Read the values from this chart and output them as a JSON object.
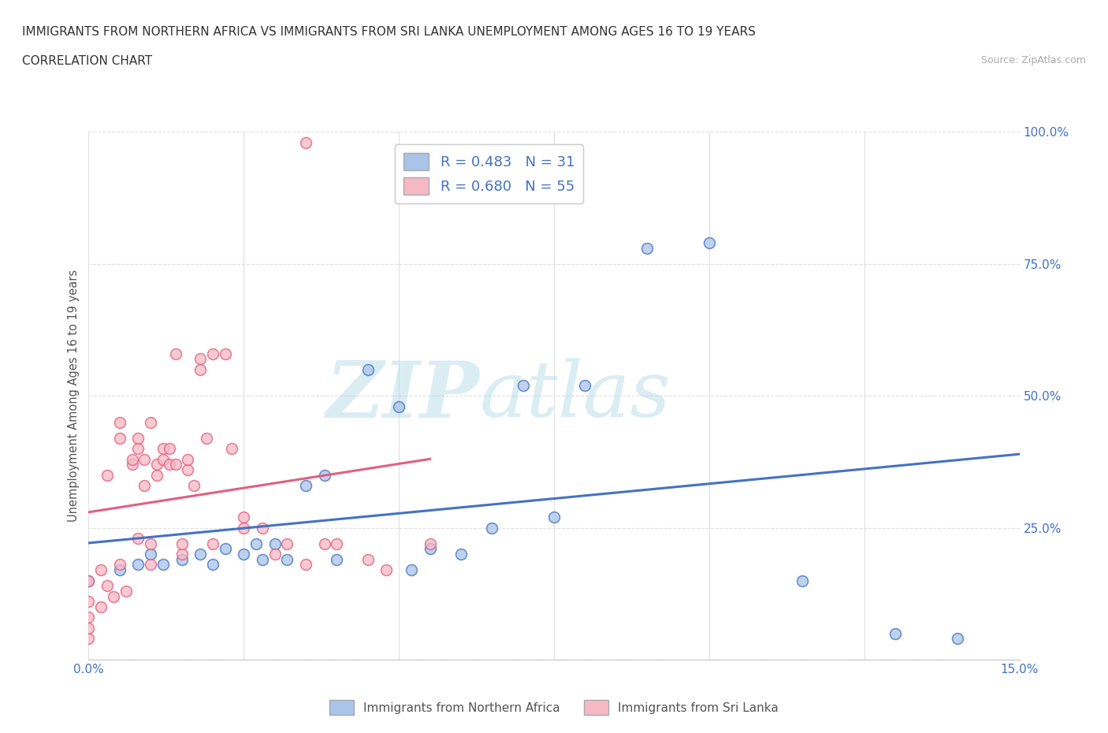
{
  "title_line1": "IMMIGRANTS FROM NORTHERN AFRICA VS IMMIGRANTS FROM SRI LANKA UNEMPLOYMENT AMONG AGES 16 TO 19 YEARS",
  "title_line2": "CORRELATION CHART",
  "source": "Source: ZipAtlas.com",
  "ylabel_label": "Unemployment Among Ages 16 to 19 years",
  "x_min": 0.0,
  "x_max": 0.15,
  "y_min": 0.0,
  "y_max": 1.0,
  "x_ticks": [
    0.0,
    0.025,
    0.05,
    0.075,
    0.1,
    0.125,
    0.15
  ],
  "y_ticks": [
    0.0,
    0.25,
    0.5,
    0.75,
    1.0
  ],
  "y_tick_labels": [
    "",
    "25.0%",
    "50.0%",
    "75.0%",
    "100.0%"
  ],
  "r_blue": 0.483,
  "n_blue": 31,
  "r_pink": 0.68,
  "n_pink": 55,
  "color_blue": "#a8c4e8",
  "color_pink": "#f5b8c4",
  "line_blue": "#4472c4",
  "line_pink": "#e06080",
  "blue_x": [
    0.0,
    0.005,
    0.008,
    0.01,
    0.012,
    0.015,
    0.018,
    0.02,
    0.022,
    0.025,
    0.027,
    0.028,
    0.03,
    0.032,
    0.035,
    0.038,
    0.04,
    0.045,
    0.05,
    0.052,
    0.055,
    0.06,
    0.065,
    0.07,
    0.075,
    0.08,
    0.09,
    0.1,
    0.115,
    0.13,
    0.14
  ],
  "blue_y": [
    0.15,
    0.17,
    0.18,
    0.2,
    0.18,
    0.19,
    0.2,
    0.18,
    0.21,
    0.2,
    0.22,
    0.19,
    0.22,
    0.19,
    0.33,
    0.35,
    0.19,
    0.55,
    0.48,
    0.17,
    0.21,
    0.2,
    0.25,
    0.52,
    0.27,
    0.52,
    0.78,
    0.79,
    0.15,
    0.05,
    0.04
  ],
  "pink_x": [
    0.0,
    0.0,
    0.0,
    0.0,
    0.0,
    0.002,
    0.002,
    0.003,
    0.003,
    0.004,
    0.005,
    0.005,
    0.005,
    0.006,
    0.007,
    0.007,
    0.008,
    0.008,
    0.008,
    0.009,
    0.009,
    0.01,
    0.01,
    0.01,
    0.011,
    0.011,
    0.012,
    0.012,
    0.013,
    0.013,
    0.014,
    0.014,
    0.015,
    0.015,
    0.016,
    0.016,
    0.017,
    0.018,
    0.018,
    0.019,
    0.02,
    0.02,
    0.022,
    0.023,
    0.025,
    0.025,
    0.028,
    0.03,
    0.032,
    0.035,
    0.038,
    0.04,
    0.045,
    0.048,
    0.055
  ],
  "pink_y": [
    0.04,
    0.06,
    0.08,
    0.11,
    0.15,
    0.1,
    0.17,
    0.14,
    0.35,
    0.12,
    0.45,
    0.42,
    0.18,
    0.13,
    0.37,
    0.38,
    0.23,
    0.4,
    0.42,
    0.38,
    0.33,
    0.18,
    0.45,
    0.22,
    0.35,
    0.37,
    0.4,
    0.38,
    0.37,
    0.4,
    0.58,
    0.37,
    0.2,
    0.22,
    0.36,
    0.38,
    0.33,
    0.55,
    0.57,
    0.42,
    0.22,
    0.58,
    0.58,
    0.4,
    0.25,
    0.27,
    0.25,
    0.2,
    0.22,
    0.18,
    0.22,
    0.22,
    0.19,
    0.17,
    0.22
  ],
  "pink_outlier_x": [
    0.035
  ],
  "pink_outlier_y": [
    0.98
  ],
  "watermark_top": "ZIP",
  "watermark_bot": "atlas",
  "background_color": "#ffffff",
  "grid_color": "#e0e0e0"
}
